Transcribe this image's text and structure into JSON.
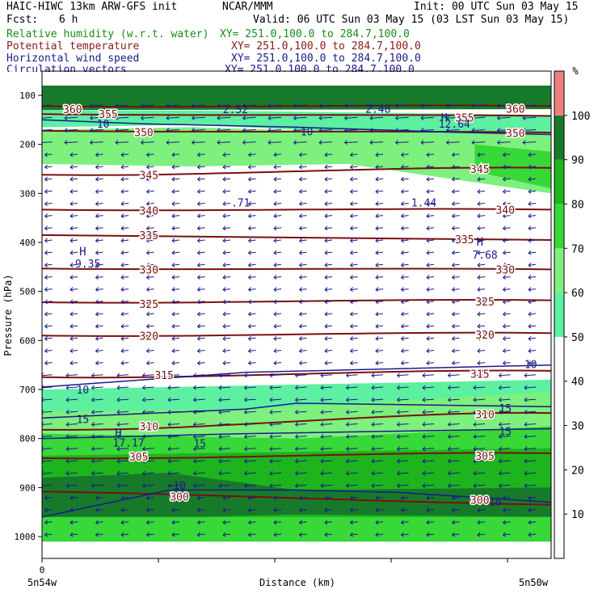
{
  "header": {
    "model": "HAIC-HIWC 13km ARW-GFS init",
    "center": "NCAR/MMM",
    "init": "Init: 00 UTC Sun 03 May 15",
    "fcst_label": "Fcst:",
    "fcst_value": "6 h",
    "valid": "Valid: 06 UTC Sun 03 May 15 (03 LST Sun 03 May 15)"
  },
  "fields": [
    {
      "name": "Relative humidity (w.r.t. water)",
      "xy": "XY= 251.0,100.0 to 284.7,100.0",
      "color": "#1a8c1a"
    },
    {
      "name": "Potential temperature",
      "xy": "XY= 251.0,100.0 to 284.7,100.0",
      "color": "#8b1a1a"
    },
    {
      "name": "Horizontal wind speed",
      "xy": "XY= 251.0,100.0 to 284.7,100.0",
      "color": "#1a1a8b"
    },
    {
      "name": "Circulation vectors",
      "xy": "XY= 251.0,100.0 to 284.7,100.0",
      "color": "#1a1a8b"
    }
  ],
  "chart_data": {
    "type": "cross-section",
    "xlabel": "Distance (km)",
    "ylabel": "Pressure (hPa)",
    "x_start_tick": "0",
    "x_left_label": "5n54w",
    "x_right_label": "5n50w",
    "y_ticks": [
      100,
      200,
      300,
      400,
      500,
      600,
      700,
      800,
      900,
      1000
    ],
    "colorbar": {
      "unit": "%",
      "ticks": [
        10,
        20,
        30,
        40,
        50,
        60,
        70,
        80,
        90,
        100
      ],
      "levels": [
        {
          "from": 0,
          "to": 50,
          "color": "#ffffff"
        },
        {
          "from": 50,
          "to": 60,
          "color": "#5cf0a0"
        },
        {
          "from": 60,
          "to": 70,
          "color": "#7df07d"
        },
        {
          "from": 70,
          "to": 80,
          "color": "#38d838"
        },
        {
          "from": 80,
          "to": 90,
          "color": "#1eb41e"
        },
        {
          "from": 90,
          "to": 100,
          "color": "#177a2a"
        },
        {
          "from": 100,
          "to": 110,
          "color": "#f08080"
        }
      ]
    },
    "theta_labels": [
      {
        "v": "360",
        "x": 0.06,
        "p": 128
      },
      {
        "v": "355",
        "x": 0.13,
        "p": 138
      },
      {
        "v": "350",
        "x": 0.2,
        "p": 175
      },
      {
        "v": "345",
        "x": 0.21,
        "p": 262
      },
      {
        "v": "340",
        "x": 0.21,
        "p": 335
      },
      {
        "v": "335",
        "x": 0.21,
        "p": 385
      },
      {
        "v": "330",
        "x": 0.21,
        "p": 455
      },
      {
        "v": "325",
        "x": 0.21,
        "p": 525
      },
      {
        "v": "320",
        "x": 0.21,
        "p": 590
      },
      {
        "v": "315",
        "x": 0.24,
        "p": 670
      },
      {
        "v": "310",
        "x": 0.21,
        "p": 775
      },
      {
        "v": "305",
        "x": 0.19,
        "p": 837
      },
      {
        "v": "300",
        "x": 0.27,
        "p": 918
      },
      {
        "v": "360",
        "x": 0.93,
        "p": 127
      },
      {
        "v": "355",
        "x": 0.83,
        "p": 145
      },
      {
        "v": "350",
        "x": 0.93,
        "p": 177
      },
      {
        "v": "345",
        "x": 0.86,
        "p": 250
      },
      {
        "v": "340",
        "x": 0.91,
        "p": 333
      },
      {
        "v": "335",
        "x": 0.83,
        "p": 393
      },
      {
        "v": "330",
        "x": 0.91,
        "p": 455
      },
      {
        "v": "325",
        "x": 0.87,
        "p": 520
      },
      {
        "v": "320",
        "x": 0.87,
        "p": 588
      },
      {
        "v": "315",
        "x": 0.86,
        "p": 668
      },
      {
        "v": "310",
        "x": 0.87,
        "p": 750
      },
      {
        "v": "305",
        "x": 0.87,
        "p": 835
      },
      {
        "v": "300",
        "x": 0.86,
        "p": 925
      }
    ],
    "theta_lines": [
      {
        "v": 360,
        "p": [
          122,
          122
        ]
      },
      {
        "v": 355,
        "p": [
          138,
          142
        ]
      },
      {
        "v": 350,
        "p": [
          172,
          176
        ]
      },
      {
        "v": 345,
        "p": [
          262,
          248
        ]
      },
      {
        "v": 340,
        "p": [
          333,
          333
        ]
      },
      {
        "v": 335,
        "p": [
          385,
          395
        ]
      },
      {
        "v": 330,
        "p": [
          453,
          455
        ]
      },
      {
        "v": 325,
        "p": [
          522,
          518
        ]
      },
      {
        "v": 320,
        "p": [
          590,
          585
        ]
      },
      {
        "v": 315,
        "p": [
          675,
          662
        ]
      },
      {
        "v": 310,
        "p": [
          782,
          748
        ]
      },
      {
        "v": 305,
        "p": [
          840,
          830
        ]
      },
      {
        "v": 300,
        "p": [
          908,
          935
        ]
      }
    ],
    "wind_labels": [
      {
        "v": "2.52",
        "x": 0.38,
        "p": 128
      },
      {
        "v": "2.48",
        "x": 0.66,
        "p": 127
      },
      {
        "v": "12.64",
        "x": 0.81,
        "p": 158
      },
      {
        "v": ".71",
        "x": 0.39,
        "p": 318
      },
      {
        "v": "1.44",
        "x": 0.75,
        "p": 318
      },
      {
        "v": "7.68",
        "x": 0.87,
        "p": 425
      },
      {
        "v": "9.35",
        "x": 0.09,
        "p": 443
      },
      {
        "v": "17.17",
        "x": 0.17,
        "p": 808
      },
      {
        "v": "10",
        "x": 0.12,
        "p": 158
      },
      {
        "v": "10",
        "x": 0.52,
        "p": 173
      },
      {
        "v": "10",
        "x": 0.08,
        "p": 700
      },
      {
        "v": "10",
        "x": 0.96,
        "p": 648
      },
      {
        "v": "15",
        "x": 0.08,
        "p": 760
      },
      {
        "v": "15",
        "x": 0.31,
        "p": 810
      },
      {
        "v": "15",
        "x": 0.91,
        "p": 738
      },
      {
        "v": "15",
        "x": 0.91,
        "p": 785
      },
      {
        "v": "10",
        "x": 0.27,
        "p": 895
      },
      {
        "v": "10",
        "x": 0.89,
        "p": 928
      }
    ],
    "wind_maxima": [
      {
        "v": "H",
        "x": 0.79,
        "p": 145
      },
      {
        "v": "H",
        "x": 0.08,
        "p": 418
      },
      {
        "v": "H",
        "x": 0.86,
        "p": 398
      },
      {
        "v": "H",
        "x": 0.15,
        "p": 788
      }
    ]
  }
}
